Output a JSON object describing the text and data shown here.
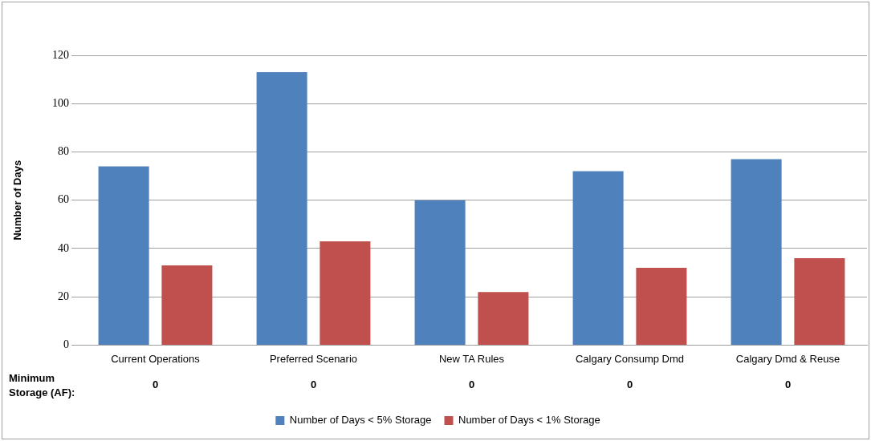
{
  "chart_data": {
    "type": "bar",
    "categories": [
      "Current Operations",
      "Preferred Scenario",
      "New TA Rules",
      "Calgary Consump Dmd",
      "Calgary Dmd & Reuse"
    ],
    "series": [
      {
        "name": "Number of Days < 5% Storage",
        "color": "#4f81bd",
        "values": [
          74,
          113,
          60,
          72,
          77
        ]
      },
      {
        "name": "Number of Days < 1% Storage",
        "color": "#c0504d",
        "values": [
          33,
          43,
          22,
          32,
          36
        ]
      }
    ],
    "ylabel": "Number of Days",
    "ylim": [
      0,
      120
    ],
    "yticks": [
      0,
      20,
      40,
      60,
      80,
      100,
      120
    ],
    "grid": "y",
    "legend": "bottom",
    "annotations": [
      "Minimum Storage (AF):",
      "0",
      "0",
      "0",
      "0",
      "0"
    ]
  }
}
